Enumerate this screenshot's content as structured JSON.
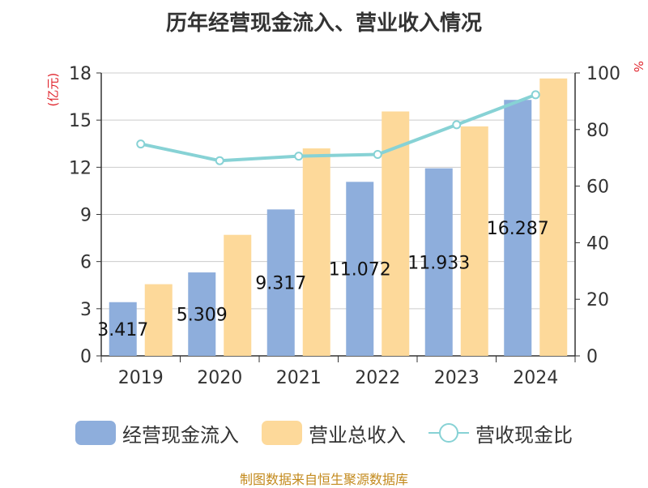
{
  "colors": {
    "bar1": "#8eaedc",
    "bar2": "#fdd99a",
    "line": "#87d2d5",
    "unit": "#e0242c",
    "source": "#c38a1d",
    "axis": "#333333",
    "grid": "#cccccc"
  },
  "chart_data": {
    "type": "bar+line",
    "title": "历年经营现金流入、营业收入情况",
    "categories": [
      "2019",
      "2020",
      "2021",
      "2022",
      "2023",
      "2024"
    ],
    "left_axis": {
      "unit": "(亿元)",
      "ticks": [
        "0",
        "3",
        "6",
        "9",
        "12",
        "15",
        "18"
      ],
      "range": [
        0,
        18
      ]
    },
    "right_axis": {
      "unit": "%",
      "ticks": [
        "0",
        "20",
        "40",
        "60",
        "80",
        "100"
      ],
      "range": [
        0,
        100
      ]
    },
    "series": [
      {
        "name": "经营现金流入",
        "type": "bar",
        "axis": "left",
        "values": [
          3.417,
          5.309,
          9.317,
          11.072,
          11.933,
          16.287
        ],
        "labels": [
          "3.417",
          "5.309",
          "9.317",
          "11.072",
          "11.933",
          "16.287"
        ]
      },
      {
        "name": "营业总收入",
        "type": "bar",
        "axis": "left",
        "values": [
          4.56,
          7.7,
          13.2,
          15.55,
          14.6,
          17.65
        ]
      },
      {
        "name": "营收现金比",
        "type": "line",
        "axis": "right",
        "values": [
          74.9,
          69.0,
          70.6,
          71.2,
          81.7,
          92.3
        ]
      }
    ],
    "grid": true,
    "legend": "bottom"
  },
  "source": "制图数据来自恒生聚源数据库"
}
